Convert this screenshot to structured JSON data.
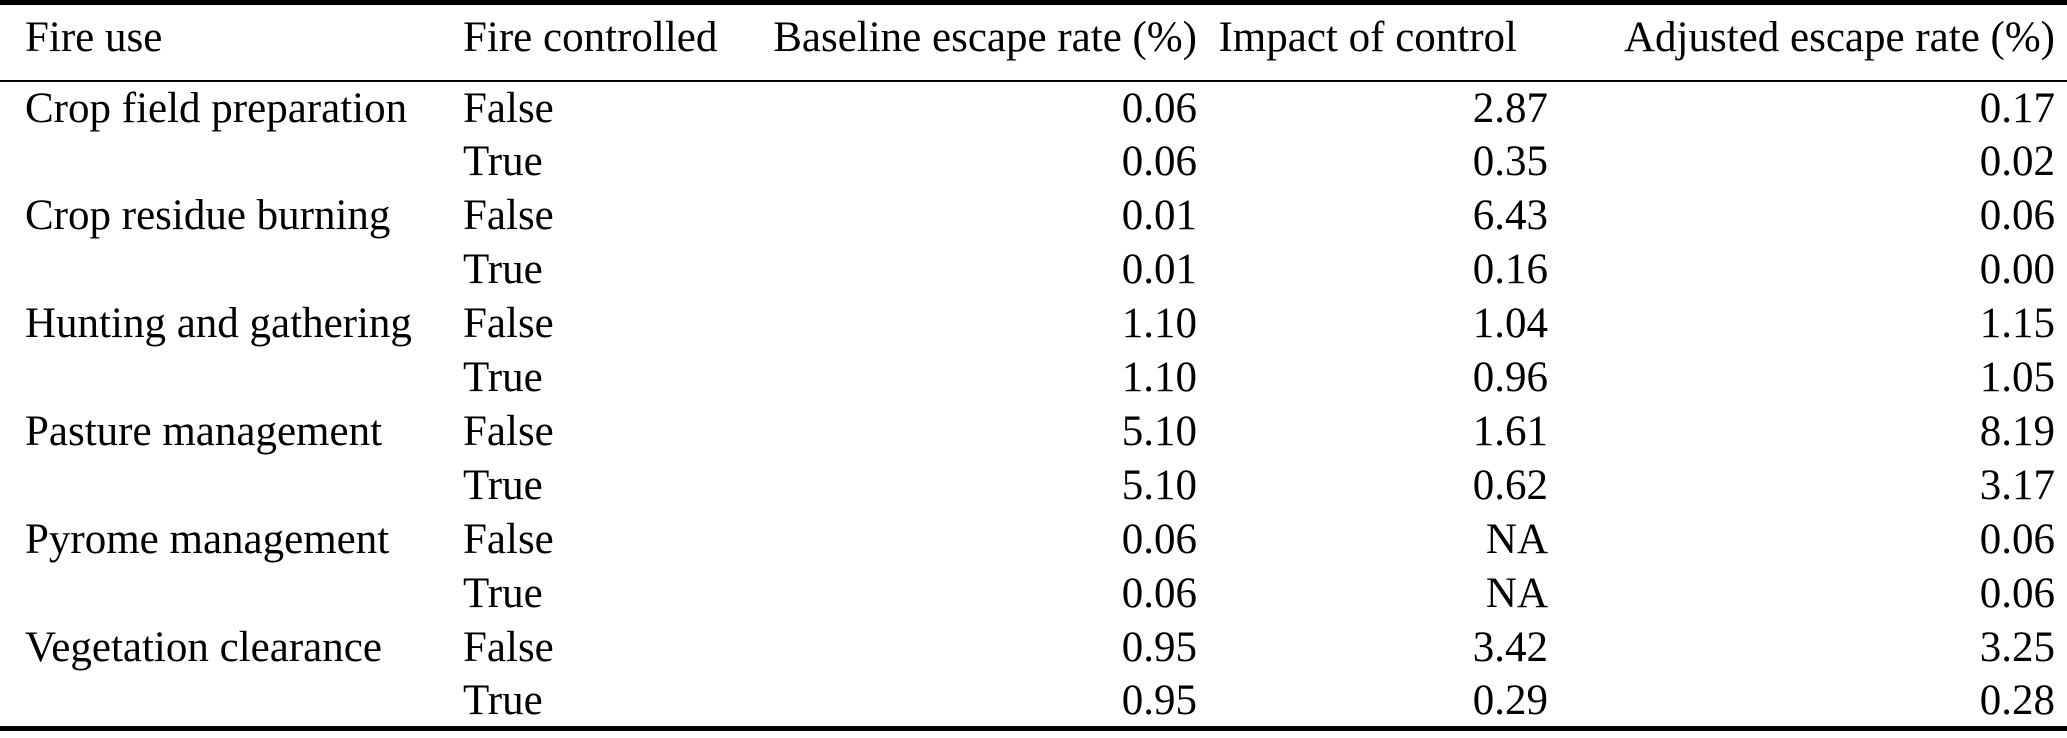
{
  "colors": {
    "text": "#000000",
    "background": "#ffffff",
    "rule": "#000000"
  },
  "table": {
    "columns": [
      "Fire use",
      "Fire controlled",
      "Baseline escape rate (%)",
      "Impact of control",
      "Adjusted escape rate (%)"
    ],
    "rows": [
      [
        "Crop field preparation",
        "False",
        "0.06",
        "2.87",
        "0.17"
      ],
      [
        "",
        "True",
        "0.06",
        "0.35",
        "0.02"
      ],
      [
        "Crop residue burning",
        "False",
        "0.01",
        "6.43",
        "0.06"
      ],
      [
        "",
        "True",
        "0.01",
        "0.16",
        "0.00"
      ],
      [
        "Hunting and gathering",
        "False",
        "1.10",
        "1.04",
        "1.15"
      ],
      [
        "",
        "True",
        "1.10",
        "0.96",
        "1.05"
      ],
      [
        "Pasture management",
        "False",
        "5.10",
        "1.61",
        "8.19"
      ],
      [
        "",
        "True",
        "5.10",
        "0.62",
        "3.17"
      ],
      [
        "Pyrome management",
        "False",
        "0.06",
        "NA",
        "0.06"
      ],
      [
        "",
        "True",
        "0.06",
        "NA",
        "0.06"
      ],
      [
        "Vegetation clearance",
        "False",
        "0.95",
        "3.42",
        "3.25"
      ],
      [
        "",
        "True",
        "0.95",
        "0.29",
        "0.28"
      ]
    ]
  }
}
